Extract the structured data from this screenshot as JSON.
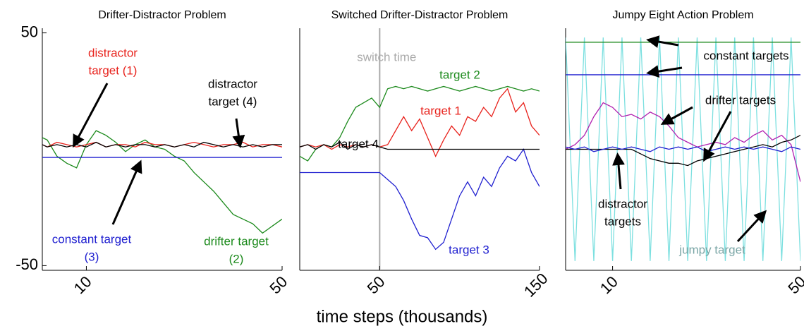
{
  "chart_data": [
    {
      "type": "line",
      "title": "Drifter-Distractor Problem",
      "x": [
        1,
        2,
        4,
        6,
        8,
        10,
        12,
        14,
        16,
        18,
        20,
        22,
        24,
        26,
        28,
        30,
        32,
        34,
        36,
        38,
        40,
        42,
        44,
        46,
        48,
        50
      ],
      "xlim": [
        1,
        50
      ],
      "xticks": [
        10,
        50
      ],
      "ylim": [
        -52,
        52
      ],
      "yticks": [
        -50,
        50
      ],
      "series": [
        {
          "color": "#1c8a1c",
          "values": [
            5,
            4,
            -3,
            -6,
            -8,
            2,
            8,
            6,
            3,
            -1,
            2,
            4,
            1,
            0,
            -3,
            -5,
            -10,
            -14,
            -18,
            -23,
            -28,
            -30,
            -32,
            -36,
            -33,
            -30
          ]
        },
        {
          "color": "#2020d0",
          "values": [
            -3.5,
            -3.5,
            -3.5,
            -3.5,
            -3.5,
            -3.5,
            -3.5,
            -3.5,
            -3.5,
            -3.5,
            -3.5,
            -3.5,
            -3.5,
            -3.5,
            -3.5,
            -3.5,
            -3.5,
            -3.5,
            -3.5,
            -3.5,
            -3.5,
            -3.5,
            -3.5,
            -3.5,
            -3.5,
            -3.5
          ]
        },
        {
          "color": "#e8221c",
          "values": [
            2,
            1,
            3,
            2,
            1,
            2,
            3,
            1,
            2,
            2,
            1,
            3,
            2,
            2,
            1,
            2,
            3,
            2,
            1,
            2,
            2,
            3,
            1,
            2,
            2,
            1
          ]
        },
        {
          "color": "#000000",
          "values": [
            2,
            1,
            2,
            1,
            2,
            1,
            3,
            1,
            2,
            1,
            2,
            2,
            1,
            2,
            1,
            2,
            1,
            3,
            2,
            1,
            2,
            1,
            2,
            1,
            2,
            2
          ]
        }
      ],
      "annotations": [
        {
          "lines": [
            "distractor",
            "target (1)"
          ],
          "color": "#e8221c"
        },
        {
          "lines": [
            "distractor",
            "target (4)"
          ],
          "color": "#000000"
        },
        {
          "lines": [
            "constant target",
            "(3)"
          ],
          "color": "#2020d0"
        },
        {
          "lines": [
            "drifter target",
            "(2)"
          ],
          "color": "#1c8a1c"
        }
      ]
    },
    {
      "type": "line",
      "title": "Switched Drifter-Distractor Problem",
      "xlabel": "time steps (thousands)",
      "x": [
        0,
        5,
        10,
        15,
        20,
        25,
        30,
        35,
        40,
        45,
        50,
        55,
        60,
        65,
        70,
        75,
        80,
        85,
        90,
        95,
        100,
        105,
        110,
        115,
        120,
        125,
        130,
        135,
        140,
        145,
        150
      ],
      "xlim": [
        0,
        150
      ],
      "xticks": [
        50,
        150
      ],
      "ylim": [
        -52,
        52
      ],
      "switch_time": {
        "label": "switch time",
        "x": 50
      },
      "series": [
        {
          "color": "#1c8a1c",
          "values": [
            -3,
            -5,
            0,
            2,
            1,
            5,
            12,
            18,
            20,
            22,
            18,
            26,
            27,
            26,
            27,
            26,
            25,
            26,
            27,
            26,
            25,
            26,
            27,
            26,
            25,
            26,
            27,
            26,
            25,
            26,
            25
          ]
        },
        {
          "color": "#2020d0",
          "values": [
            -10,
            -10,
            -10,
            -10,
            -10,
            -10,
            -10,
            -10,
            -10,
            -10,
            -10,
            -13,
            -16,
            -22,
            -30,
            -37,
            -38,
            -43,
            -40,
            -30,
            -20,
            -14,
            -20,
            -12,
            -16,
            -8,
            -3,
            -5,
            0,
            -10,
            -16
          ]
        },
        {
          "color": "#e8221c",
          "values": [
            1,
            2,
            1,
            2,
            0,
            2,
            1,
            2,
            1,
            2,
            1,
            2,
            8,
            14,
            8,
            13,
            5,
            -3,
            4,
            10,
            6,
            14,
            12,
            18,
            14,
            22,
            26,
            16,
            20,
            10,
            6
          ]
        },
        {
          "color": "#000000",
          "values": [
            1,
            2,
            0,
            2,
            1,
            3,
            0,
            2,
            1,
            2,
            1,
            0,
            0,
            0,
            0,
            0,
            0,
            0,
            0,
            0,
            0,
            0,
            0,
            0,
            0,
            0,
            0,
            0,
            0,
            0,
            0
          ]
        }
      ],
      "annotations": [
        {
          "lines": [
            "target 2"
          ],
          "color": "#1c8a1c"
        },
        {
          "lines": [
            "target 1"
          ],
          "color": "#e8221c"
        },
        {
          "lines": [
            "target 4"
          ],
          "color": "#000000"
        },
        {
          "lines": [
            "target 3"
          ],
          "color": "#2020d0"
        }
      ]
    },
    {
      "type": "line",
      "title": "Jumpy Eight Action Problem",
      "x": [
        0,
        2,
        4,
        6,
        8,
        10,
        12,
        14,
        16,
        18,
        20,
        22,
        24,
        26,
        28,
        30,
        32,
        34,
        36,
        38,
        40,
        42,
        44,
        46,
        48,
        50
      ],
      "xlim": [
        0,
        50
      ],
      "xticks": [
        10,
        50
      ],
      "ylim": [
        -52,
        52
      ],
      "series": [
        {
          "color": "#7de0e0",
          "values": [
            48,
            -48,
            48,
            -48,
            48,
            -48,
            48,
            -48,
            48,
            -48,
            48,
            -48,
            48,
            -48,
            48,
            -48,
            48,
            -48,
            48,
            -48,
            48,
            -48,
            48,
            -48,
            48,
            -48
          ]
        },
        {
          "color": "#1c8a1c",
          "values": [
            46,
            46,
            46,
            46,
            46,
            46,
            46,
            46,
            46,
            46,
            46,
            46,
            46,
            46,
            46,
            46,
            46,
            46,
            46,
            46,
            46,
            46,
            46,
            46,
            46,
            46
          ]
        },
        {
          "color": "#2020d0",
          "values": [
            32,
            32,
            32,
            32,
            32,
            32,
            32,
            32,
            32,
            32,
            32,
            32,
            32,
            32,
            32,
            32,
            32,
            32,
            32,
            32,
            32,
            32,
            32,
            32,
            32,
            32
          ]
        },
        {
          "color": "#b020b0",
          "values": [
            0,
            2,
            6,
            14,
            20,
            18,
            14,
            15,
            13,
            16,
            14,
            10,
            5,
            3,
            1,
            2,
            3,
            2,
            5,
            3,
            6,
            8,
            4,
            6,
            2,
            -14
          ]
        },
        {
          "color": "#000000",
          "values": [
            0,
            0,
            0,
            0,
            0,
            0,
            0,
            0,
            -2,
            -4,
            -5,
            -6,
            -6,
            -7,
            -5,
            -4,
            -3,
            -2,
            -1,
            0,
            1,
            2,
            1,
            3,
            4,
            6
          ]
        },
        {
          "color": "#2020d0",
          "values": [
            1,
            0,
            1,
            -1,
            0,
            1,
            0,
            1,
            0,
            -1,
            1,
            0,
            1,
            0,
            1,
            -1,
            0,
            1,
            0,
            1,
            0,
            1,
            0,
            -1,
            1,
            0
          ]
        }
      ],
      "annotations": [
        {
          "lines": [
            "constant targets"
          ],
          "color": "#000000"
        },
        {
          "lines": [
            "drifter targets"
          ],
          "color": "#000000"
        },
        {
          "lines": [
            "distractor",
            "targets"
          ],
          "color": "#000000"
        },
        {
          "lines": [
            "jumpy target"
          ],
          "color": "#7aa6a6"
        }
      ]
    }
  ]
}
